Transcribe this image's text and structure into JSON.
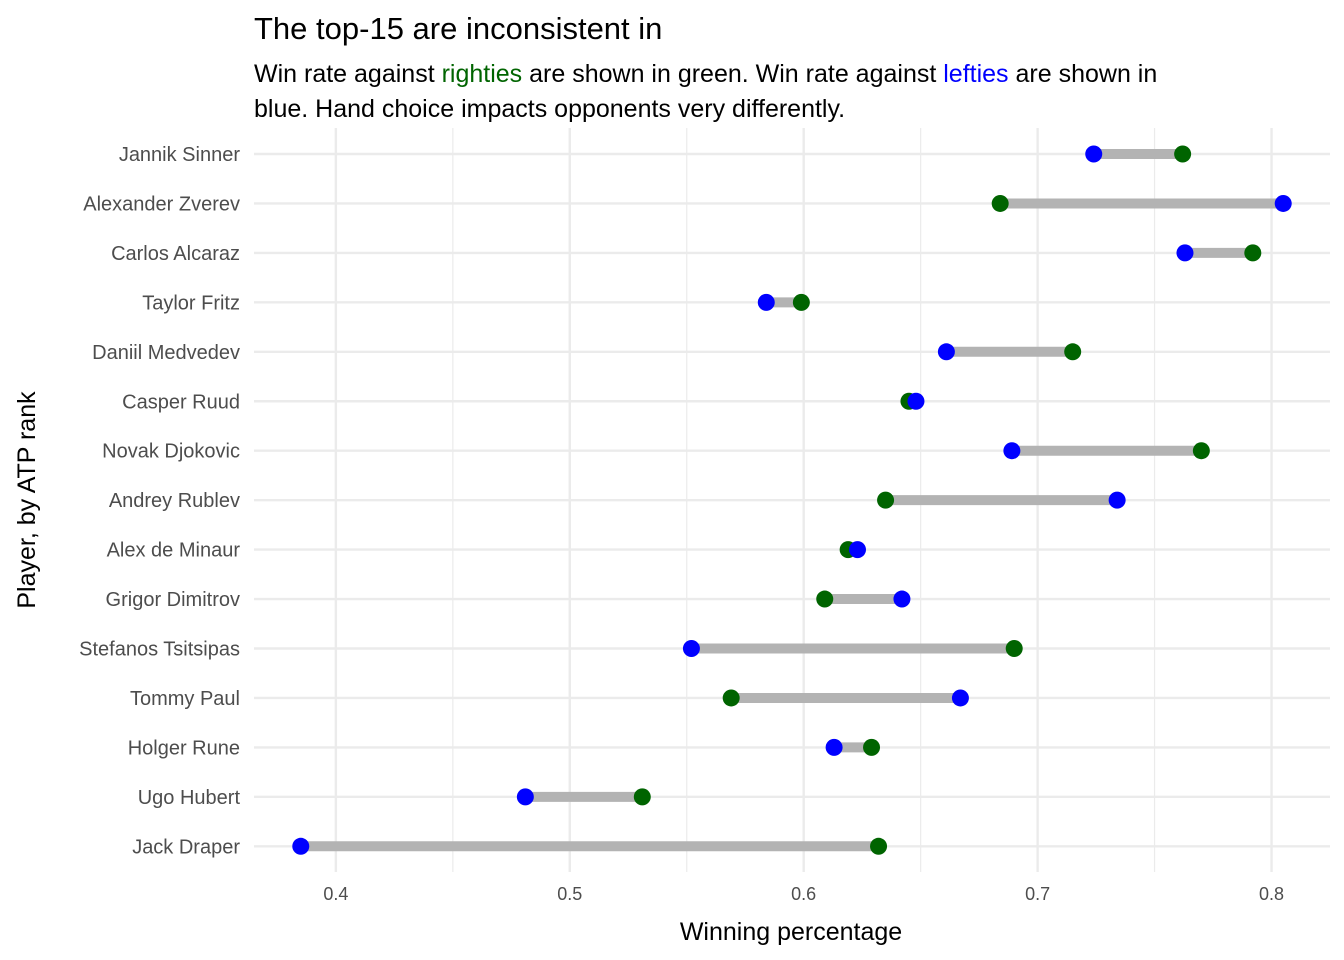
{
  "chart_data": {
    "type": "dumbbell",
    "title": "The top-15 are inconsistent in",
    "subtitle": {
      "line1": [
        {
          "text": "Win rate against ",
          "color": "#000000"
        },
        {
          "text": "righties",
          "color": "#006400"
        },
        {
          "text": " are shown in green. Win rate against ",
          "color": "#000000"
        },
        {
          "text": "lefties",
          "color": "#0000ff"
        },
        {
          "text": " are shown in",
          "color": "#000000"
        }
      ],
      "line2": "blue. Hand choice impacts opponents very differently."
    },
    "xlabel": "Winning percentage",
    "ylabel": "Player, by ATP rank",
    "xlim": [
      0.365,
      0.825
    ],
    "xticks": [
      {
        "value": 0.4,
        "label": "0.4"
      },
      {
        "value": 0.5,
        "label": "0.5"
      },
      {
        "value": 0.6,
        "label": "0.6"
      },
      {
        "value": 0.7,
        "label": "0.7"
      },
      {
        "value": 0.8,
        "label": "0.8"
      }
    ],
    "grid": true,
    "colors": {
      "righties": "#006400",
      "lefties": "#0000ff",
      "segment": "#b3b3b3",
      "grid": "#ebebeb"
    },
    "players": [
      {
        "name": "Jannik Sinner",
        "righties": 0.762,
        "lefties": 0.724
      },
      {
        "name": "Alexander Zverev",
        "righties": 0.684,
        "lefties": 0.805
      },
      {
        "name": "Carlos Alcaraz",
        "righties": 0.792,
        "lefties": 0.763
      },
      {
        "name": "Taylor Fritz",
        "righties": 0.599,
        "lefties": 0.584
      },
      {
        "name": "Daniil Medvedev",
        "righties": 0.715,
        "lefties": 0.661
      },
      {
        "name": "Casper Ruud",
        "righties": 0.645,
        "lefties": 0.648
      },
      {
        "name": "Novak Djokovic",
        "righties": 0.77,
        "lefties": 0.689
      },
      {
        "name": "Andrey Rublev",
        "righties": 0.635,
        "lefties": 0.734
      },
      {
        "name": "Alex de Minaur",
        "righties": 0.619,
        "lefties": 0.623
      },
      {
        "name": "Grigor Dimitrov",
        "righties": 0.609,
        "lefties": 0.642
      },
      {
        "name": "Stefanos Tsitsipas",
        "righties": 0.69,
        "lefties": 0.552
      },
      {
        "name": "Tommy Paul",
        "righties": 0.569,
        "lefties": 0.667
      },
      {
        "name": "Holger Rune",
        "righties": 0.629,
        "lefties": 0.613
      },
      {
        "name": "Ugo Hubert",
        "righties": 0.531,
        "lefties": 0.481
      },
      {
        "name": "Jack Draper",
        "righties": 0.632,
        "lefties": 0.385
      }
    ]
  }
}
